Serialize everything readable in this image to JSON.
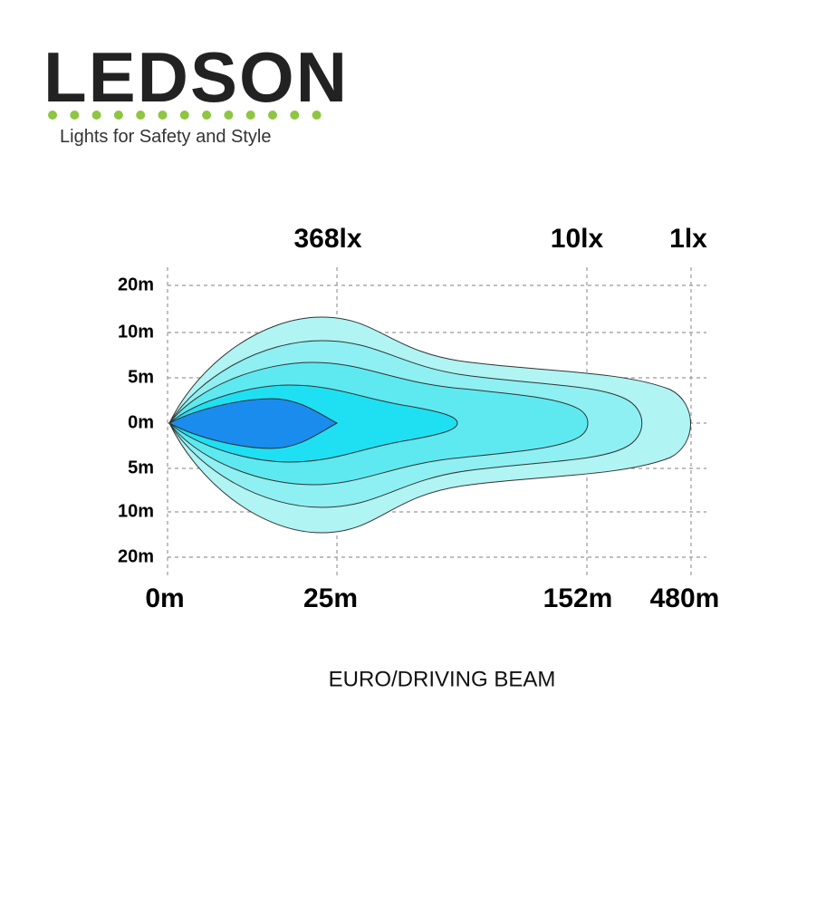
{
  "logo": {
    "name": "LEDSON",
    "tagline": "Lights for Safety and Style"
  },
  "diagram": {
    "lux_labels": [
      "368lx",
      "10lx",
      "1lx"
    ],
    "width_labels": [
      "20m",
      "10m",
      "5m",
      "0m",
      "5m",
      "10m",
      "20m"
    ],
    "distance_labels": [
      "0m",
      "25m",
      "152m",
      "480m"
    ],
    "caption": "EURO/DRIVING BEAM"
  }
}
